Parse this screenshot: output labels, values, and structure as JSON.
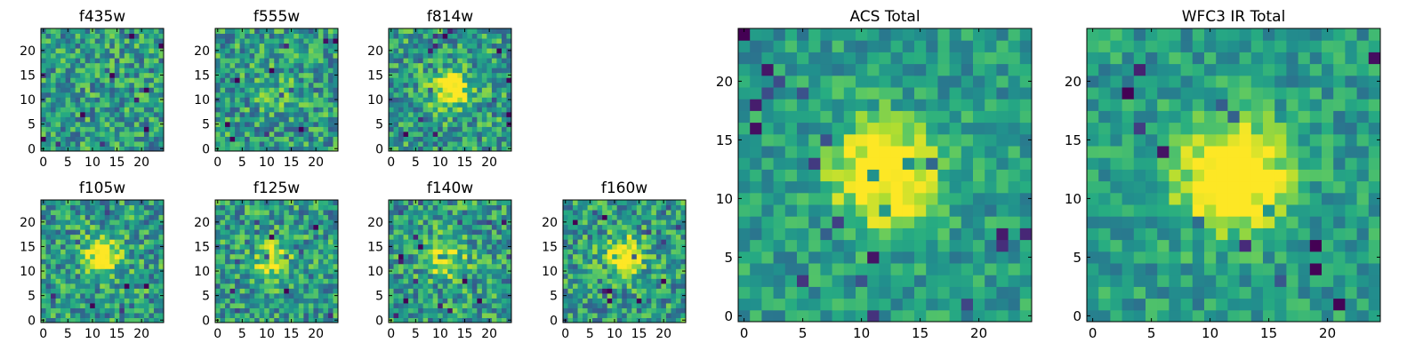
{
  "chart_data": [
    {
      "type": "heatmap",
      "title": "f435w",
      "xticks": [
        "0",
        "5",
        "10",
        "15",
        "20"
      ],
      "yticks": [
        "0",
        "5",
        "10",
        "15",
        "20"
      ],
      "xlim": [
        0,
        25
      ],
      "ylim": [
        0,
        25
      ],
      "grid_size": 25,
      "colormap": "viridis",
      "source_peak": 0.0,
      "source_center": [
        12,
        12
      ]
    },
    {
      "type": "heatmap",
      "title": "f555w",
      "xticks": [
        "0",
        "5",
        "10",
        "15",
        "20"
      ],
      "yticks": [
        "0",
        "5",
        "10",
        "15",
        "20"
      ],
      "xlim": [
        0,
        25
      ],
      "ylim": [
        0,
        25
      ],
      "grid_size": 25,
      "colormap": "viridis",
      "source_peak": 0.1,
      "source_center": [
        12,
        12
      ]
    },
    {
      "type": "heatmap",
      "title": "f814w",
      "xticks": [
        "0",
        "5",
        "10",
        "15",
        "20"
      ],
      "yticks": [
        "0",
        "5",
        "10",
        "15",
        "20"
      ],
      "xlim": [
        0,
        25
      ],
      "ylim": [
        0,
        25
      ],
      "grid_size": 25,
      "colormap": "viridis",
      "source_peak": 0.55,
      "source_center": [
        12,
        12
      ]
    },
    {
      "type": "heatmap",
      "title": "f105w",
      "xticks": [
        "0",
        "5",
        "10",
        "15",
        "20"
      ],
      "yticks": [
        "0",
        "5",
        "10",
        "15",
        "20"
      ],
      "xlim": [
        0,
        25
      ],
      "ylim": [
        0,
        25
      ],
      "grid_size": 25,
      "colormap": "viridis",
      "source_peak": 0.6,
      "source_center": [
        12,
        13
      ]
    },
    {
      "type": "heatmap",
      "title": "f125w",
      "xticks": [
        "0",
        "5",
        "10",
        "15",
        "20"
      ],
      "yticks": [
        "0",
        "5",
        "10",
        "15",
        "20"
      ],
      "xlim": [
        0,
        25
      ],
      "ylim": [
        0,
        25
      ],
      "grid_size": 25,
      "colormap": "viridis",
      "source_peak": 0.45,
      "source_center": [
        11,
        12
      ]
    },
    {
      "type": "heatmap",
      "title": "f140w",
      "xticks": [
        "0",
        "5",
        "10",
        "15",
        "20"
      ],
      "yticks": [
        "0",
        "5",
        "10",
        "15",
        "20"
      ],
      "xlim": [
        0,
        25
      ],
      "ylim": [
        0,
        25
      ],
      "grid_size": 25,
      "colormap": "viridis",
      "source_peak": 0.5,
      "source_center": [
        11,
        13
      ]
    },
    {
      "type": "heatmap",
      "title": "f160w",
      "xticks": [
        "0",
        "5",
        "10",
        "15",
        "20"
      ],
      "yticks": [
        "0",
        "5",
        "10",
        "15",
        "20"
      ],
      "xlim": [
        0,
        25
      ],
      "ylim": [
        0,
        25
      ],
      "grid_size": 25,
      "colormap": "viridis",
      "source_peak": 0.6,
      "source_center": [
        12,
        13
      ]
    },
    {
      "type": "heatmap",
      "title": "ACS Total",
      "xticks": [
        "0",
        "5",
        "10",
        "15",
        "20"
      ],
      "yticks": [
        "0",
        "5",
        "10",
        "15",
        "20"
      ],
      "xlim": [
        0,
        25
      ],
      "ylim": [
        0,
        25
      ],
      "grid_size": 25,
      "colormap": "viridis",
      "source_peak": 0.6,
      "source_center": [
        12,
        12
      ]
    },
    {
      "type": "heatmap",
      "title": "WFC3 IR Total",
      "xticks": [
        "0",
        "5",
        "10",
        "15",
        "20"
      ],
      "yticks": [
        "0",
        "5",
        "10",
        "15",
        "20"
      ],
      "xlim": [
        0,
        25
      ],
      "ylim": [
        0,
        25
      ],
      "grid_size": 25,
      "colormap": "viridis",
      "source_peak": 0.75,
      "source_center": [
        12,
        12
      ]
    }
  ]
}
